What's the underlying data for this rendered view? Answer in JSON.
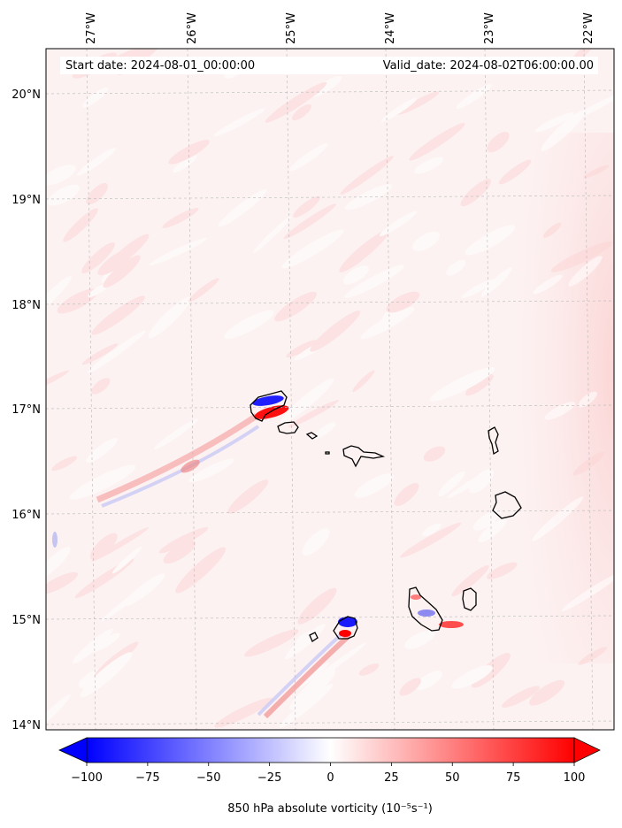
{
  "map": {
    "start_label": "Start date: 2024-08-01_00:00:00",
    "valid_label": "Valid_date: 2024-08-02T06:00:00.00",
    "lon_ticks": [
      "27°W",
      "26°W",
      "25°W",
      "24°W",
      "23°W",
      "22°W"
    ],
    "lat_ticks": [
      "20°N",
      "19°N",
      "18°N",
      "17°N",
      "16°N",
      "15°N",
      "14°N"
    ],
    "extent": {
      "lon_min": -27.35,
      "lon_max": -21.75,
      "lat_min": 13.95,
      "lat_max": 20.45
    },
    "gridlines": true,
    "coastline_color": "#000000"
  },
  "colorbar": {
    "label": "850 hPa absolute vorticity (10$^{-5}$s$^{-1}$)",
    "label_display": "850 hPa absolute vorticity (10⁻⁵s⁻¹)",
    "ticks": [
      "−100",
      "−75",
      "−50",
      "−25",
      "0",
      "25",
      "50",
      "75",
      "100"
    ],
    "tick_values": [
      -100,
      -75,
      -50,
      -25,
      0,
      25,
      50,
      75,
      100
    ],
    "cmap": "bwr",
    "range": [
      -100,
      100
    ],
    "extend": "both",
    "colors": {
      "low": "#0000ff",
      "mid": "#ffffff",
      "high": "#ff0000"
    }
  }
}
